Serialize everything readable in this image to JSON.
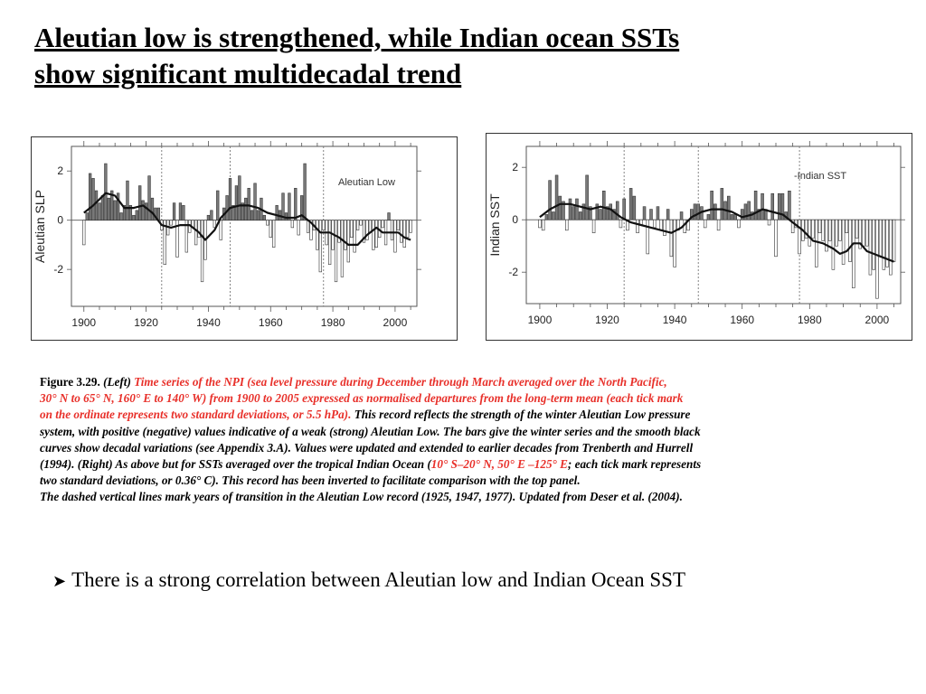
{
  "title": {
    "line1": "Aleutian low is strengthened, while Indian ocean SSTs ",
    "line2": "show significant multidecadal trend"
  },
  "chart_data": [
    {
      "type": "bar",
      "legend": "Aleutian Low",
      "ylabel": "Aleutian SLP",
      "xlabel": "",
      "xlim": [
        1896,
        2007
      ],
      "ylim": [
        -3.5,
        3
      ],
      "xticks": [
        1900,
        1920,
        1940,
        1960,
        1980,
        2000
      ],
      "yticks": [
        -2,
        0,
        2
      ],
      "transition_years": [
        1925,
        1947,
        1977
      ],
      "bar_color": "#7a7a7a",
      "negative_color": "#ffffff",
      "x_start": 1900,
      "values": [
        -1.0,
        0.3,
        1.9,
        1.7,
        1.2,
        0.7,
        1.0,
        2.3,
        0.9,
        1.2,
        0.8,
        1.1,
        0.3,
        0.6,
        1.6,
        0.6,
        0.2,
        0.4,
        1.4,
        0.8,
        0.7,
        1.8,
        0.9,
        0.5,
        0.5,
        -0.4,
        -1.8,
        -0.6,
        -0.2,
        0.7,
        -1.5,
        0.7,
        0.6,
        -1.3,
        -0.5,
        -0.3,
        -1.0,
        -0.7,
        -2.5,
        -1.6,
        0.2,
        0.4,
        -0.3,
        1.2,
        -0.8,
        0.5,
        1.0,
        1.7,
        0.6,
        1.4,
        1.8,
        0.7,
        0.9,
        1.3,
        0.4,
        1.5,
        0.4,
        0.9,
        0.2,
        -0.2,
        -0.7,
        -1.1,
        0.6,
        0.4,
        1.1,
        0.3,
        1.1,
        -0.3,
        1.3,
        -0.6,
        1.0,
        2.3,
        -0.5,
        -0.8,
        -0.4,
        -1.2,
        -2.1,
        -0.4,
        -1.0,
        -1.8,
        -1.2,
        -2.5,
        -0.9,
        -2.3,
        -1.2,
        -1.7,
        -0.7,
        -1.3,
        -0.4,
        -0.2,
        -0.9,
        -0.8,
        -0.5,
        -1.2,
        -1.1,
        -0.7,
        -0.3,
        -1.0,
        0.3,
        -0.8,
        -1.3,
        -0.4,
        -0.9,
        -1.1,
        -0.7,
        -0.5
      ],
      "smooth": [
        [
          1900,
          0.3
        ],
        [
          1903,
          0.6
        ],
        [
          1907,
          1.1
        ],
        [
          1910,
          1.0
        ],
        [
          1913,
          0.5
        ],
        [
          1916,
          0.5
        ],
        [
          1919,
          0.6
        ],
        [
          1922,
          0.3
        ],
        [
          1925,
          -0.2
        ],
        [
          1928,
          -0.3
        ],
        [
          1931,
          -0.2
        ],
        [
          1934,
          -0.2
        ],
        [
          1937,
          -0.5
        ],
        [
          1939,
          -0.8
        ],
        [
          1942,
          -0.4
        ],
        [
          1944,
          0.1
        ],
        [
          1947,
          0.5
        ],
        [
          1950,
          0.6
        ],
        [
          1953,
          0.6
        ],
        [
          1956,
          0.5
        ],
        [
          1959,
          0.3
        ],
        [
          1962,
          0.2
        ],
        [
          1965,
          0.1
        ],
        [
          1968,
          0.1
        ],
        [
          1970,
          0.2
        ],
        [
          1973,
          -0.1
        ],
        [
          1976,
          -0.5
        ],
        [
          1979,
          -0.5
        ],
        [
          1982,
          -0.7
        ],
        [
          1985,
          -1.0
        ],
        [
          1988,
          -1.0
        ],
        [
          1991,
          -0.6
        ],
        [
          1994,
          -0.3
        ],
        [
          1996,
          -0.5
        ],
        [
          1998,
          -0.5
        ],
        [
          2001,
          -0.5
        ],
        [
          2003,
          -0.7
        ],
        [
          2005,
          -0.8
        ]
      ]
    },
    {
      "type": "bar",
      "legend": "-Indian SST",
      "ylabel": "Indian SST",
      "xlabel": "",
      "xlim": [
        1896,
        2007
      ],
      "ylim": [
        -3.2,
        2.8
      ],
      "xticks": [
        1900,
        1920,
        1940,
        1960,
        1980,
        2000
      ],
      "yticks": [
        -2,
        0,
        2
      ],
      "transition_years": [
        1925,
        1947,
        1977
      ],
      "bar_color": "#7a7a7a",
      "negative_color": "#ffffff",
      "x_start": 1900,
      "values": [
        -0.3,
        -0.4,
        0.2,
        1.5,
        0.3,
        1.7,
        0.9,
        0.7,
        -0.4,
        0.8,
        0.5,
        0.8,
        0.3,
        0.6,
        1.7,
        0.5,
        -0.5,
        0.6,
        0.4,
        1.1,
        0.5,
        0.6,
        0.4,
        0.7,
        -0.3,
        0.8,
        -0.4,
        1.2,
        0.9,
        -0.5,
        -0.2,
        0.5,
        -1.3,
        0.4,
        -0.3,
        0.5,
        -0.4,
        -0.6,
        0.4,
        -1.4,
        -1.8,
        -0.4,
        0.3,
        -0.5,
        -0.4,
        0.4,
        0.6,
        0.6,
        0.5,
        -0.3,
        0.2,
        1.1,
        0.6,
        -0.4,
        1.2,
        0.7,
        0.9,
        0.2,
        0.2,
        -0.3,
        0.4,
        0.6,
        0.7,
        0.3,
        1.1,
        0.4,
        1.0,
        0.4,
        -0.2,
        1.0,
        -1.4,
        1.0,
        1.0,
        0.3,
        1.1,
        -0.5,
        -0.3,
        -1.3,
        -0.8,
        -0.7,
        -1.0,
        -0.7,
        -1.8,
        -0.5,
        -0.8,
        -1.2,
        -0.8,
        -1.9,
        -1.0,
        -0.8,
        -1.7,
        -0.5,
        -1.6,
        -2.6,
        -0.7,
        -1.1,
        -1.0,
        -1.0,
        -2.1,
        -1.9,
        -3.0,
        -1.4,
        -1.9,
        -1.8,
        -2.1,
        -1.6
      ],
      "smooth": [
        [
          1900,
          0.1
        ],
        [
          1903,
          0.4
        ],
        [
          1906,
          0.6
        ],
        [
          1909,
          0.6
        ],
        [
          1912,
          0.5
        ],
        [
          1915,
          0.4
        ],
        [
          1918,
          0.5
        ],
        [
          1921,
          0.4
        ],
        [
          1924,
          0.1
        ],
        [
          1927,
          -0.1
        ],
        [
          1930,
          -0.2
        ],
        [
          1933,
          -0.3
        ],
        [
          1936,
          -0.4
        ],
        [
          1939,
          -0.5
        ],
        [
          1942,
          -0.3
        ],
        [
          1945,
          0.1
        ],
        [
          1948,
          0.3
        ],
        [
          1951,
          0.4
        ],
        [
          1954,
          0.4
        ],
        [
          1957,
          0.3
        ],
        [
          1960,
          0.1
        ],
        [
          1963,
          0.2
        ],
        [
          1966,
          0.4
        ],
        [
          1969,
          0.3
        ],
        [
          1972,
          0.2
        ],
        [
          1975,
          -0.1
        ],
        [
          1978,
          -0.4
        ],
        [
          1981,
          -0.8
        ],
        [
          1984,
          -0.9
        ],
        [
          1987,
          -1.1
        ],
        [
          1989,
          -1.3
        ],
        [
          1991,
          -1.2
        ],
        [
          1993,
          -0.9
        ],
        [
          1995,
          -0.9
        ],
        [
          1997,
          -1.2
        ],
        [
          1999,
          -1.3
        ],
        [
          2001,
          -1.4
        ],
        [
          2003,
          -1.5
        ],
        [
          2005,
          -1.6
        ]
      ]
    }
  ],
  "caption": {
    "fig_label": "Figure 3.29.",
    "left_tag": "(Left)",
    "red1": "Time series of the NPI (sea level pressure during December through March averaged over the North Pacific,",
    "red2": "30° N to 65° N, 160° E to 140° W) from 1900 to 2005 expressed as normalised departures from the long-term mean (each tick mark",
    "red3": "on the ordinate represents two standard deviations, or 5.5 hPa).",
    "black3": " This record reflects the strength of the winter Aleutian Low pressure",
    "line4": "system, with positive (negative) values indicative of a weak (strong) Aleutian Low. The bars give the winter series and the smooth black",
    "line5": " curves show decadal variations (see Appendix 3.A). Values were updated and extended to earlier decades from Trenberth and Hurrell",
    "line6a": "(1994). (Right) As above but for SSTs averaged over the tropical Indian Ocean (",
    "line6red": "10° S–20° N, 50° E –125° E",
    "line6b": "; each tick mark represents",
    "line7": "two standard deviations, or 0.36° C). This record has been inverted to facilitate comparison with the top panel.",
    "line8": "The dashed vertical lines mark years of transition in the Aleutian Low record (1925, 1947, 1977). Updated from Deser et al. (2004)."
  },
  "bullet": {
    "icon": "arrow-bullet-icon",
    "text": "There is a strong correlation between Aleutian low and Indian Ocean SST"
  }
}
